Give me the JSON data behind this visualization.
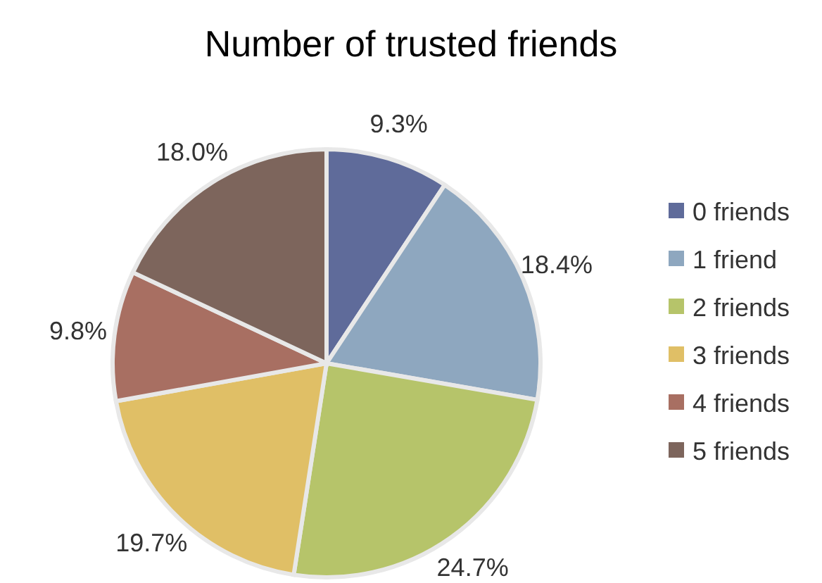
{
  "chart_data": {
    "type": "pie",
    "title": "Number of trusted friends",
    "categories": [
      "0 friends",
      "1 friend",
      "2 friends",
      "3 friends",
      "4 friends",
      "5 friends"
    ],
    "values": [
      9.3,
      18.4,
      24.7,
      19.7,
      9.8,
      18.0
    ],
    "value_labels": [
      "9.3%",
      "18.4%",
      "24.7%",
      "19.7%",
      "9.8%",
      "18.0%"
    ],
    "colors": [
      "#5f6b9a",
      "#8ea7bf",
      "#b6c46a",
      "#e0bf66",
      "#a86f62",
      "#7d655c"
    ],
    "legend": "right"
  }
}
